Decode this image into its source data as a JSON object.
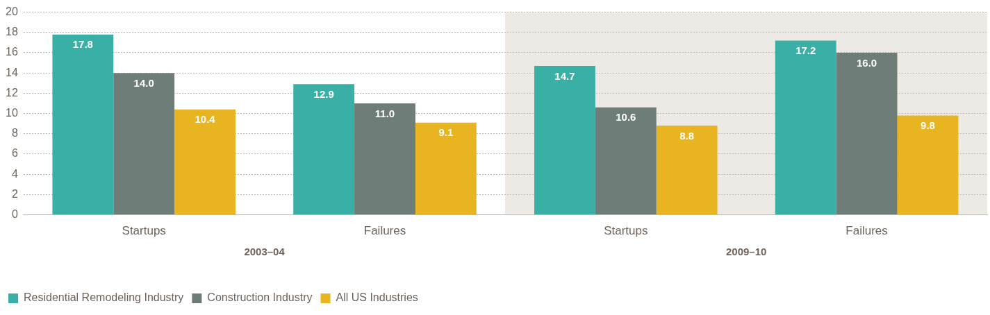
{
  "chart_data": {
    "type": "bar",
    "categories": [
      "Startups",
      "Failures",
      "Startups",
      "Failures"
    ],
    "series": [
      {
        "name": "Residential Remodeling Industry",
        "color": "#3aafa5",
        "values": [
          17.8,
          12.9,
          14.7,
          17.2
        ],
        "value_labels": [
          "17.8",
          "12.9",
          "14.7",
          "17.2"
        ]
      },
      {
        "name": "Construction Industry",
        "color": "#6f7d79",
        "values": [
          14.0,
          11.0,
          10.6,
          16.0
        ],
        "value_labels": [
          "14.0",
          "11.0",
          "10.6",
          "16.0"
        ]
      },
      {
        "name": "All US Industries",
        "color": "#e8b422",
        "values": [
          10.4,
          9.1,
          8.8,
          9.8
        ],
        "value_labels": [
          "10.4",
          "9.1",
          "8.8",
          "9.8"
        ]
      }
    ],
    "ylim": [
      0,
      20
    ],
    "yticks": [
      0,
      2,
      4,
      6,
      8,
      10,
      12,
      14,
      16,
      18,
      20
    ],
    "grid": "y",
    "legend": "bottom left",
    "annotations": [
      "2003–04",
      "2009–10"
    ]
  }
}
